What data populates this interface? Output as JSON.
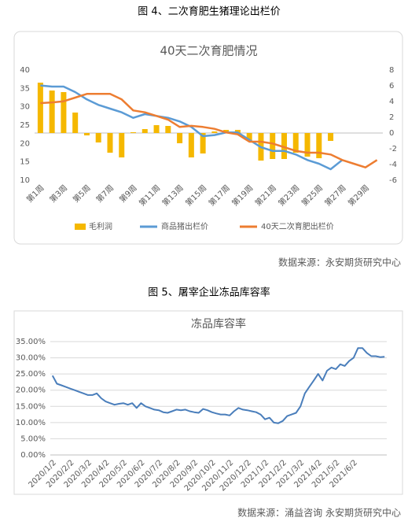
{
  "figures": [
    {
      "caption": "图 4、二次育肥生猪理论出栏价",
      "source": "数据来源：永安期货研究中心"
    },
    {
      "caption": "图 5、屠宰企业冻品库容率",
      "source": "数据来源：涌益咨询  永安期货研究中心"
    }
  ],
  "chart_data": [
    {
      "type": "bar",
      "title": "40天二次育肥情况",
      "categories": [
        "第1周",
        null,
        "第3周",
        null,
        "第5周",
        null,
        "第7周",
        null,
        "第9周",
        null,
        "第11周",
        null,
        "第13周",
        null,
        "第15周",
        null,
        "第17周",
        null,
        "第19周",
        null,
        "第21周",
        null,
        "第23周",
        null,
        "第25周",
        null,
        "第27周",
        null,
        "第29周",
        null
      ],
      "series": [
        {
          "name": "毛利润",
          "type": "bar",
          "axis": "y2",
          "color": "#f5b800",
          "values": [
            6.4,
            5.4,
            5.2,
            2.6,
            -0.3,
            -1.2,
            -2.5,
            -3.1,
            0.1,
            0.5,
            1.0,
            0.9,
            -1.3,
            -3.1,
            -2.6,
            0.2,
            0.4,
            0.4,
            -1.0,
            -3.5,
            -3.3,
            -3.3,
            -2.5,
            -3.0,
            -3.2,
            -1.0,
            null,
            null,
            null,
            null
          ]
        },
        {
          "name": "商品猪出栏价",
          "type": "line",
          "color": "#5b9bd5",
          "values": [
            35.8,
            35.5,
            35.5,
            34,
            32,
            30.5,
            29.5,
            28.5,
            27,
            28,
            27.5,
            27,
            26,
            24.5,
            22,
            22.3,
            23,
            23,
            21,
            19,
            18,
            18,
            17,
            15.5,
            14.5,
            13,
            15.5,
            null,
            null,
            null
          ]
        },
        {
          "name": "40天二次育肥出栏价",
          "type": "line",
          "color": "#ed7d31",
          "values": [
            31,
            31.2,
            31.5,
            32.5,
            33.5,
            33.5,
            33.5,
            32,
            29,
            28.5,
            27.5,
            26.5,
            24.5,
            24.8,
            24.5,
            24,
            23,
            22.5,
            20.5,
            20.5,
            20,
            19,
            18,
            17.5,
            17.5,
            17,
            15.5,
            14.5,
            13.5,
            15.5
          ]
        }
      ],
      "ylim": [
        10,
        40
      ],
      "yticks": [
        10,
        15,
        20,
        25,
        30,
        35,
        40
      ],
      "y2lim": [
        -6,
        8
      ],
      "y2ticks": [
        -6,
        -4,
        -2,
        0,
        2,
        4,
        6,
        8
      ],
      "grid": false,
      "legend": "bottom"
    },
    {
      "type": "line",
      "title": "冻品库容率",
      "categories": [
        "2020/1/2",
        null,
        null,
        null,
        "2020/2/2",
        null,
        null,
        null,
        "2020/3/2",
        null,
        null,
        null,
        "2020/4/2",
        null,
        null,
        null,
        "2020/5/2",
        null,
        null,
        null,
        "2020/6/2",
        null,
        null,
        null,
        "2020/7/2",
        null,
        null,
        null,
        "2020/8/2",
        null,
        null,
        null,
        "2020/9/2",
        null,
        null,
        null,
        "2020/10/2",
        null,
        null,
        null,
        "2020/11/2",
        null,
        null,
        null,
        "2020/12/2",
        null,
        null,
        null,
        "2021/1/2",
        null,
        null,
        null,
        "2021/2/2",
        null,
        null,
        null,
        "2021/3/2",
        null,
        null,
        null,
        "2021/4/2",
        null,
        null,
        null,
        "2021/5/2",
        null,
        null,
        null,
        "2021/6/2",
        null,
        null,
        null,
        null,
        null,
        null,
        null
      ],
      "series": [
        {
          "name": "冻品库容率",
          "color": "#4a7ebb",
          "values": [
            24.5,
            22,
            21.5,
            21,
            20.5,
            20,
            19.5,
            19,
            18.5,
            18.5,
            19,
            17.5,
            16.5,
            16,
            15.5,
            15.8,
            16,
            15.5,
            16,
            14.5,
            16,
            15,
            14.5,
            14,
            13.8,
            13.2,
            13,
            13.5,
            14,
            13.8,
            14,
            13.5,
            13.2,
            13,
            14.2,
            13.8,
            13.2,
            12.8,
            12.5,
            12.5,
            12.2,
            13.5,
            14.5,
            14,
            13.8,
            13.5,
            13.2,
            12.5,
            11,
            11.5,
            10,
            9.8,
            10.5,
            12,
            12.5,
            13,
            15,
            19,
            21,
            23,
            25,
            23,
            26,
            27,
            26.5,
            28,
            27.5,
            29,
            30,
            33,
            33,
            31.5,
            30.5,
            30.5,
            30.2,
            30.3
          ]
        }
      ],
      "ylim": [
        0,
        35
      ],
      "yticks": [
        {
          "value": 0,
          "label": "0.00%"
        },
        {
          "value": 5,
          "label": "5.00%"
        },
        {
          "value": 10,
          "label": "10.00%"
        },
        {
          "value": 15,
          "label": "15.00%"
        },
        {
          "value": 20,
          "label": "20.00%"
        },
        {
          "value": 25,
          "label": "25.00%"
        },
        {
          "value": 30,
          "label": "30.00%"
        },
        {
          "value": 35,
          "label": "35.00%"
        }
      ],
      "grid": true
    }
  ]
}
